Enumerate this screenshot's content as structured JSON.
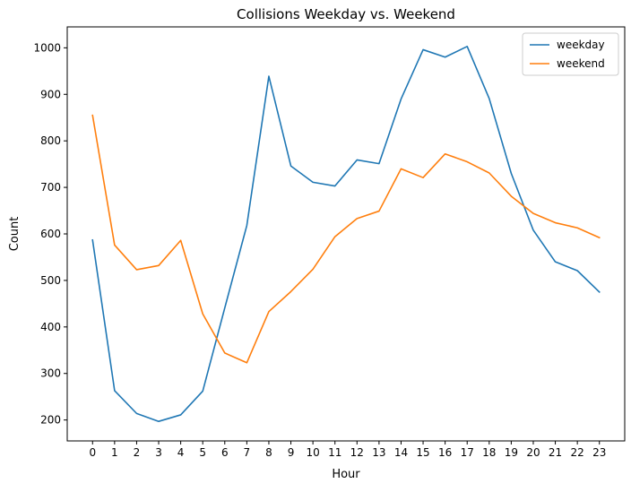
{
  "chart_data": {
    "type": "line",
    "title": "Collisions Weekday vs. Weekend",
    "xlabel": "Hour",
    "ylabel": "Count",
    "x": [
      0,
      1,
      2,
      3,
      4,
      5,
      6,
      7,
      8,
      9,
      10,
      11,
      12,
      13,
      14,
      15,
      16,
      17,
      18,
      19,
      20,
      21,
      22,
      23
    ],
    "xticks": [
      "0",
      "1",
      "2",
      "3",
      "4",
      "5",
      "6",
      "7",
      "8",
      "9",
      "10",
      "11",
      "12",
      "13",
      "14",
      "15",
      "16",
      "17",
      "18",
      "19",
      "20",
      "21",
      "22",
      "23"
    ],
    "yticks": [
      200,
      300,
      400,
      500,
      600,
      700,
      800,
      900,
      1000
    ],
    "ylim": [
      155,
      1045
    ],
    "xlim": [
      -1.15,
      24.15
    ],
    "grid": false,
    "legend_position": "top-right",
    "series": [
      {
        "name": "weekday",
        "color": "#1f77b4",
        "values": [
          587,
          263,
          214,
          197,
          211,
          262,
          441,
          618,
          939,
          746,
          711,
          703,
          759,
          751,
          890,
          996,
          980,
          1003,
          891,
          730,
          608,
          540,
          521,
          475
        ]
      },
      {
        "name": "weekend",
        "color": "#ff7f0e",
        "values": [
          855,
          576,
          523,
          532,
          586,
          428,
          344,
          323,
          433,
          476,
          524,
          594,
          633,
          649,
          740,
          721,
          772,
          755,
          731,
          681,
          644,
          624,
          613,
          592
        ]
      }
    ]
  }
}
